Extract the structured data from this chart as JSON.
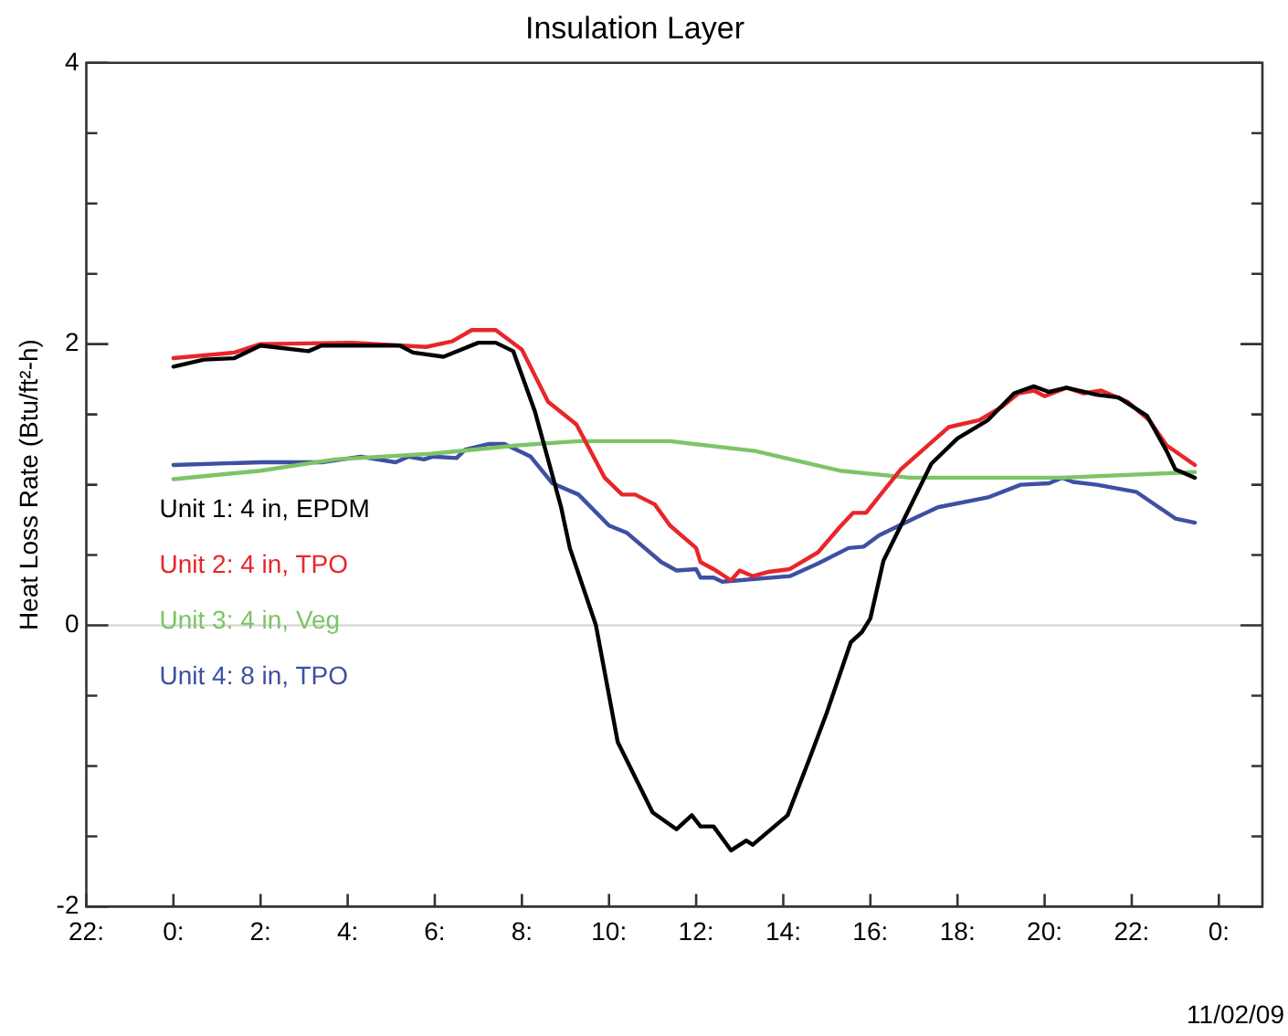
{
  "chart_data": {
    "type": "line",
    "title": "Insulation Layer",
    "ylabel": "Heat Loss Rate (Btu/ft²-h)",
    "xlim": [
      "--11-01T22:00",
      "--11-03T01:00"
    ],
    "xticks": [
      {
        "value": "--11-01T22:00",
        "label": "22:"
      },
      {
        "value": "--11-02T00:00",
        "label": "0:"
      },
      {
        "value": "--11-02T02:00",
        "label": "2:"
      },
      {
        "value": "--11-02T04:00",
        "label": "4:"
      },
      {
        "value": "--11-02T06:00",
        "label": "6:"
      },
      {
        "value": "--11-02T08:00",
        "label": "8:"
      },
      {
        "value": "--11-02T10:00",
        "label": "10:"
      },
      {
        "value": "--11-02T12:00",
        "label": "12:"
      },
      {
        "value": "--11-02T14:00",
        "label": "14:"
      },
      {
        "value": "--11-02T16:00",
        "label": "16:"
      },
      {
        "value": "--11-02T18:00",
        "label": "18:"
      },
      {
        "value": "--11-02T20:00",
        "label": "20:"
      },
      {
        "value": "--11-02T22:00",
        "label": "22:"
      },
      {
        "value": "--11-03T00:00",
        "label": "0:"
      }
    ],
    "ylim": [
      -2,
      4
    ],
    "yticks": [
      -2,
      {
        "value": -1.5,
        "label": null
      },
      {
        "value": -1,
        "label": null
      },
      {
        "value": -0.5,
        "label": null
      },
      0,
      {
        "value": 0.5,
        "label": null
      },
      {
        "value": 1,
        "label": null
      },
      {
        "value": 1.5,
        "label": null
      },
      2,
      {
        "value": 2.5,
        "label": null
      },
      {
        "value": 3,
        "label": null
      },
      {
        "value": 3.5,
        "label": null
      },
      4
    ],
    "grid": false,
    "legend": "left",
    "marker": "none",
    "line_style": "solid",
    "ref_lines": [
      {
        "axis": "y",
        "value": 0,
        "color": "#d0d0d0"
      }
    ],
    "annotations": [
      "11/02/09"
    ],
    "series": [
      {
        "name": "Unit 1: 4 in, EPDM",
        "color": "#000000",
        "x": [
          "--11-02T00:00",
          "--11-02T00:42",
          "--11-02T01:24",
          "--11-02T02:00",
          "--11-02T03:06",
          "--11-02T03:24",
          "--11-02T05:12",
          "--11-02T05:30",
          "--11-02T06:12",
          "--11-02T07:00",
          "--11-02T07:24",
          "--11-02T07:48",
          "--11-02T08:18",
          "--11-02T08:54",
          "--11-02T09:06",
          "--11-02T09:42",
          "--11-02T10:12",
          "--11-02T11:00",
          "--11-02T11:33",
          "--11-02T11:54",
          "--11-02T12:06",
          "--11-02T12:24",
          "--11-02T12:48",
          "--11-02T13:09",
          "--11-02T13:18",
          "--11-02T14:06",
          "--11-02T14:36",
          "--11-02T15:00",
          "--11-02T15:33",
          "--11-02T15:48",
          "--11-02T16:00",
          "--11-02T16:18",
          "--11-02T16:42",
          "--11-02T17:24",
          "--11-02T18:00",
          "--11-02T18:42",
          "--11-02T19:18",
          "--11-02T19:45",
          "--11-02T20:06",
          "--11-02T20:30",
          "--11-02T21:12",
          "--11-02T21:42",
          "--11-02T22:21",
          "--11-02T22:48",
          "--11-02T23:00",
          "--11-02T23:27"
        ],
        "values": [
          1.84,
          1.89,
          1.9,
          1.99,
          1.95,
          1.99,
          1.99,
          1.94,
          1.91,
          2.01,
          2.01,
          1.95,
          1.52,
          0.84,
          0.55,
          0,
          -0.83,
          -1.33,
          -1.45,
          -1.35,
          -1.43,
          -1.43,
          -1.6,
          -1.53,
          -1.56,
          -1.35,
          -0.95,
          -0.62,
          -0.12,
          -0.05,
          0.05,
          0.46,
          0.71,
          1.15,
          1.33,
          1.46,
          1.65,
          1.7,
          1.66,
          1.69,
          1.64,
          1.62,
          1.49,
          1.24,
          1.11,
          1.05
        ]
      },
      {
        "name": "Unit 2: 4 in, TPO",
        "color": "#e8262a",
        "x": [
          "--11-02T00:00",
          "--11-02T01:24",
          "--11-02T02:00",
          "--11-02T04:06",
          "--11-02T05:48",
          "--11-02T06:24",
          "--11-02T06:51",
          "--11-02T07:24",
          "--11-02T08:00",
          "--11-02T08:36",
          "--11-02T09:15",
          "--11-02T09:54",
          "--11-02T10:18",
          "--11-02T10:36",
          "--11-02T11:03",
          "--11-02T11:24",
          "--11-02T12:00",
          "--11-02T12:06",
          "--11-02T12:24",
          "--11-02T12:48",
          "--11-02T13:00",
          "--11-02T13:18",
          "--11-02T13:39",
          "--11-02T14:09",
          "--11-02T14:48",
          "--11-02T15:18",
          "--11-02T15:36",
          "--11-02T15:54",
          "--11-02T16:42",
          "--11-02T17:48",
          "--11-02T18:30",
          "--11-02T19:00",
          "--11-02T19:24",
          "--11-02T19:45",
          "--11-02T20:00",
          "--11-02T20:30",
          "--11-02T20:54",
          "--11-02T21:18",
          "--11-02T21:54",
          "--11-02T22:24",
          "--11-02T22:48",
          "--11-02T23:27"
        ],
        "values": [
          1.9,
          1.94,
          2.0,
          2.01,
          1.98,
          2.02,
          2.1,
          2.1,
          1.96,
          1.59,
          1.43,
          1.05,
          0.93,
          0.93,
          0.86,
          0.71,
          0.55,
          0.45,
          0.4,
          0.32,
          0.39,
          0.35,
          0.38,
          0.4,
          0.52,
          0.7,
          0.8,
          0.8,
          1.11,
          1.41,
          1.46,
          1.55,
          1.65,
          1.67,
          1.63,
          1.69,
          1.65,
          1.67,
          1.59,
          1.46,
          1.28,
          1.14
        ]
      },
      {
        "name": "Unit 3: 4 in, Veg",
        "color": "#7dc466",
        "x": [
          "--11-02T00:00",
          "--11-02T02:00",
          "--11-02T03:42",
          "--11-02T05:54",
          "--11-02T07:54",
          "--11-02T09:18",
          "--11-02T11:24",
          "--11-02T13:21",
          "--11-02T15:18",
          "--11-02T16:54",
          "--11-02T20:24",
          "--11-02T23:27"
        ],
        "values": [
          1.04,
          1.1,
          1.18,
          1.22,
          1.28,
          1.31,
          1.31,
          1.24,
          1.1,
          1.05,
          1.05,
          1.09
        ]
      },
      {
        "name": "Unit 4: 8 in, TPO",
        "color": "#3f4fa3",
        "x": [
          "--11-02T00:00",
          "--11-02T02:00",
          "--11-02T03:24",
          "--11-02T04:18",
          "--11-02T05:06",
          "--11-02T05:24",
          "--11-02T05:45",
          "--11-02T05:57",
          "--11-02T06:30",
          "--11-02T06:42",
          "--11-02T07:15",
          "--11-02T07:36",
          "--11-02T08:12",
          "--11-02T08:42",
          "--11-02T09:18",
          "--11-02T10:00",
          "--11-02T10:24",
          "--11-02T11:12",
          "--11-02T11:33",
          "--11-02T12:00",
          "--11-02T12:06",
          "--11-02T12:24",
          "--11-02T12:36",
          "--11-02T14:09",
          "--11-02T14:48",
          "--11-02T15:30",
          "--11-02T15:51",
          "--11-02T16:12",
          "--11-02T17:00",
          "--11-02T17:33",
          "--11-02T18:42",
          "--11-02T19:27",
          "--11-02T20:06",
          "--11-02T20:24",
          "--11-02T20:39",
          "--11-02T21:12",
          "--11-02T22:06",
          "--11-02T23:00",
          "--11-02T23:27"
        ],
        "values": [
          1.14,
          1.16,
          1.16,
          1.2,
          1.16,
          1.2,
          1.18,
          1.2,
          1.19,
          1.25,
          1.29,
          1.29,
          1.2,
          1.01,
          0.93,
          0.71,
          0.66,
          0.45,
          0.39,
          0.4,
          0.34,
          0.34,
          0.31,
          0.35,
          0.44,
          0.55,
          0.56,
          0.64,
          0.76,
          0.84,
          0.91,
          1.0,
          1.01,
          1.05,
          1.02,
          1.0,
          0.95,
          0.76,
          0.73
        ]
      }
    ]
  }
}
